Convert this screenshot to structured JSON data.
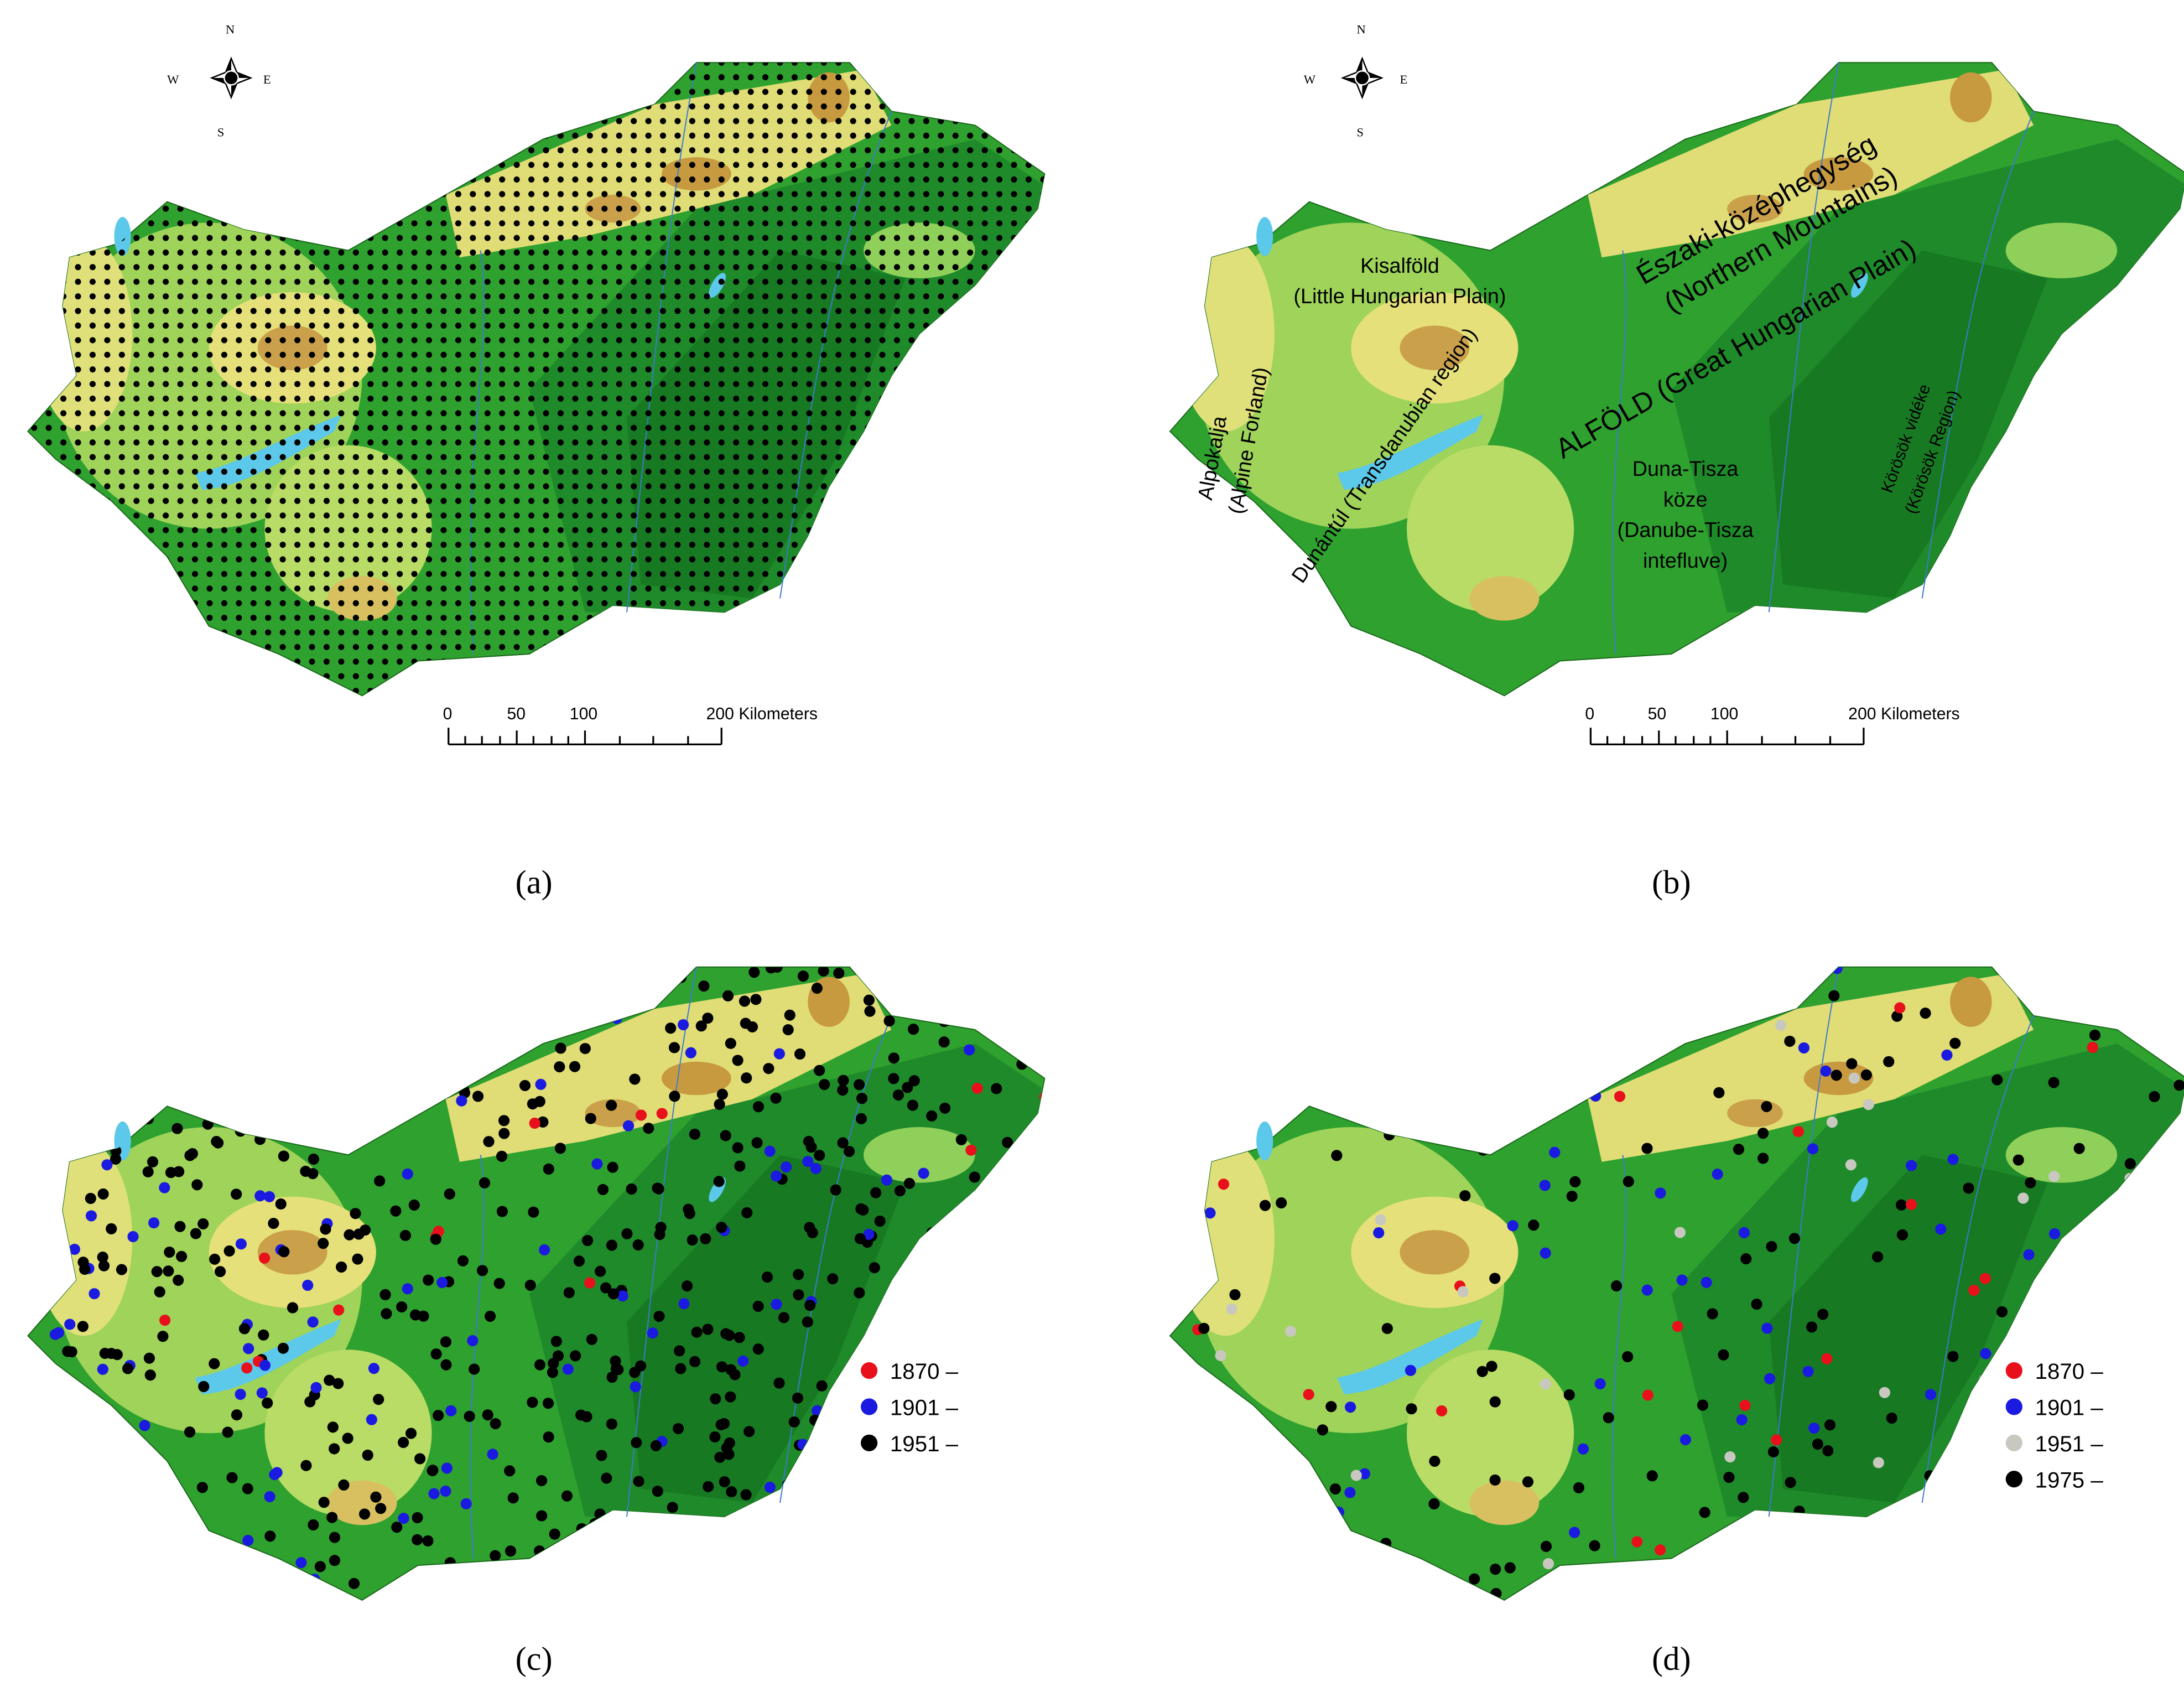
{
  "panels": [
    {
      "label": "(a)",
      "compass": {
        "n": "N",
        "s": "S",
        "e": "E",
        "w": "W"
      },
      "scale": [
        "0",
        "50",
        "100",
        "200 Kilometers"
      ]
    },
    {
      "label": "(b)",
      "compass": {
        "n": "N",
        "s": "S",
        "e": "E",
        "w": "W"
      },
      "scale": [
        "0",
        "50",
        "100",
        "200 Kilometers"
      ],
      "regions": [
        "Kisalföld",
        "(Little Hungarian Plain)",
        "Alpokalja",
        "(Alpine Forland)",
        "Dunántúl (Transdanubian region)",
        "Északi-középhegység",
        "(Northern Mountains)",
        "ALFÖLD (Great Hungarian Plain)",
        "Duna-Tisza",
        "köze",
        "(Danube-Tisza",
        "intefluve)",
        "Körösök vidéke",
        "(Körösök Region)"
      ]
    },
    {
      "label": "(c)",
      "legend": [
        {
          "name": "1870 –",
          "color": "#e8101a"
        },
        {
          "name": "1901 –",
          "color": "#1a1ae0"
        },
        {
          "name": "1951 –",
          "color": "#000000"
        }
      ]
    },
    {
      "label": "(d)",
      "legend": [
        {
          "name": "1870 –",
          "color": "#e8101a"
        },
        {
          "name": "1901 –",
          "color": "#1a1ae0"
        },
        {
          "name": "1951 –",
          "color": "#c8c8c0"
        },
        {
          "name": "1975 –",
          "color": "#000000"
        }
      ]
    }
  ]
}
